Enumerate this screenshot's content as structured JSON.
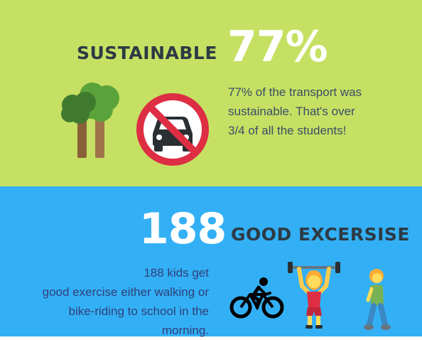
{
  "sustainable": {
    "heading": "SUSTAINABLE",
    "percent": "77%",
    "description_lines": [
      "77% of the transport was",
      "sustainable. That's over",
      "3/4 of all the students!"
    ],
    "icons": [
      "trees-icon",
      "no-car-icon"
    ],
    "colors": {
      "background": "#c6e063",
      "no_sign": "#dd2e44"
    }
  },
  "exercise": {
    "count": "188",
    "heading": "GOOD EXCERSISE",
    "description_lines": [
      "188 kids get",
      "good exercise either walking or",
      "bike-riding to school in the",
      "morning."
    ],
    "icons": [
      "bicycle-icon",
      "weightlifter-icon",
      "walking-person-icon"
    ],
    "colors": {
      "background": "#33b0f5"
    }
  }
}
